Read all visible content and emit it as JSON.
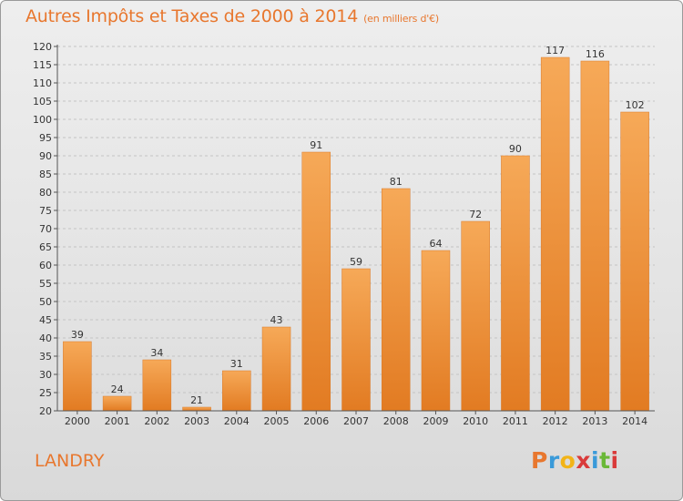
{
  "header": {
    "title": "Autres Impôts et Taxes de 2000 à 2014",
    "subtitle": "(en milliers d'€)"
  },
  "footer": {
    "commune": "LANDRY",
    "logo": {
      "letters": [
        "P",
        "r",
        "o",
        "x",
        "i",
        "t",
        "i"
      ],
      "colors": [
        "#e8772e",
        "#3a9ad9",
        "#f2b418",
        "#d93a3a",
        "#3a9ad9",
        "#6ab838",
        "#d93a3a"
      ]
    }
  },
  "colors": {
    "bar": "#f4a24e",
    "bar_dark": "#e07a23",
    "accent": "#e8772e"
  },
  "chart_data": {
    "type": "bar",
    "categories": [
      "2000",
      "2001",
      "2002",
      "2003",
      "2004",
      "2005",
      "2006",
      "2007",
      "2008",
      "2009",
      "2010",
      "2011",
      "2012",
      "2013",
      "2014"
    ],
    "values": [
      39,
      24,
      34,
      21,
      31,
      43,
      91,
      59,
      81,
      64,
      72,
      90,
      117,
      116,
      102
    ],
    "value_labels": [
      "39",
      "24",
      "34",
      "21",
      "31",
      "43",
      "91",
      "59",
      "81",
      "64",
      "72",
      "90",
      "117",
      "116",
      "102"
    ],
    "title": "Autres Impôts et Taxes de 2000 à 2014",
    "xlabel": "",
    "ylabel": "",
    "ylim": [
      20,
      120
    ],
    "yticks": [
      20,
      25,
      30,
      35,
      40,
      45,
      50,
      55,
      60,
      65,
      70,
      75,
      80,
      85,
      90,
      95,
      100,
      105,
      110,
      115,
      120
    ],
    "grid": "horizontal dashed"
  }
}
